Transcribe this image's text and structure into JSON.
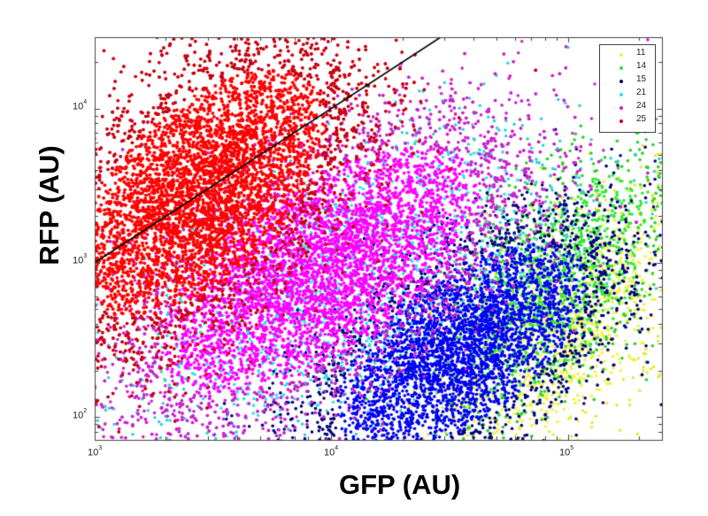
{
  "chart_data": {
    "type": "scatter",
    "title": "",
    "xlabel": "GFP (AU)",
    "ylabel": "RFP (AU)",
    "xscale": "log",
    "yscale": "log",
    "xlim": [
      1000,
      250000
    ],
    "ylim": [
      71,
      29000
    ],
    "xticks": [
      {
        "base": "10",
        "exp": "3",
        "value": 1000
      },
      {
        "base": "10",
        "exp": "4",
        "value": 10000
      },
      {
        "base": "10",
        "exp": "5",
        "value": 100000
      }
    ],
    "yticks": [
      {
        "base": "10",
        "exp": "2",
        "value": 100
      },
      {
        "base": "10",
        "exp": "3",
        "value": 1000
      },
      {
        "base": "10",
        "exp": "4",
        "value": 10000
      }
    ],
    "grid": false,
    "legend_position": "upper right",
    "series": [
      {
        "name": "11",
        "color": "#f2f24a",
        "outlier_color": "#e8e840",
        "center_log": [
          5.0,
          2.6
        ],
        "spread_log": [
          0.28,
          0.45
        ],
        "corr": 0.55,
        "n": 1200
      },
      {
        "name": "14",
        "color": "#33e833",
        "outlier_color": "#2fcc2f",
        "center_log": [
          4.95,
          2.85
        ],
        "spread_log": [
          0.26,
          0.45
        ],
        "corr": 0.6,
        "n": 1400
      },
      {
        "name": "15",
        "color": "#0000f0",
        "outlier_color": "#00007a",
        "center_log": [
          4.55,
          2.45
        ],
        "spread_log": [
          0.33,
          0.42
        ],
        "corr": 0.6,
        "n": 4500
      },
      {
        "name": "21",
        "color": "#33e0e8",
        "outlier_color": "#33d0d8",
        "center_log": [
          4.1,
          2.85
        ],
        "spread_log": [
          0.45,
          0.55
        ],
        "corr": 0.6,
        "n": 1500
      },
      {
        "name": "24",
        "color": "#ff00ff",
        "outlier_color": "#cc22cc",
        "center_log": [
          3.95,
          2.95
        ],
        "spread_log": [
          0.42,
          0.5
        ],
        "corr": 0.62,
        "n": 9000
      },
      {
        "name": "25",
        "color": "#ff0000",
        "outlier_color": "#c80010",
        "center_log": [
          3.45,
          3.45
        ],
        "spread_log": [
          0.33,
          0.5
        ],
        "corr": 0.55,
        "n": 11000
      }
    ],
    "reference_line": {
      "color": "#000000",
      "points": [
        [
          1000,
          1000
        ],
        [
          29000,
          29000
        ]
      ],
      "description": "diagonal y = x line"
    }
  },
  "legend": {
    "items": [
      {
        "label": "11",
        "color": "#f2f24a"
      },
      {
        "label": "14",
        "color": "#33e833"
      },
      {
        "label": "15",
        "color": "#00007a"
      },
      {
        "label": "21",
        "color": "#33e0e8"
      },
      {
        "label": "24",
        "color": "#cc22cc"
      },
      {
        "label": "25",
        "color": "#c80010"
      }
    ]
  }
}
